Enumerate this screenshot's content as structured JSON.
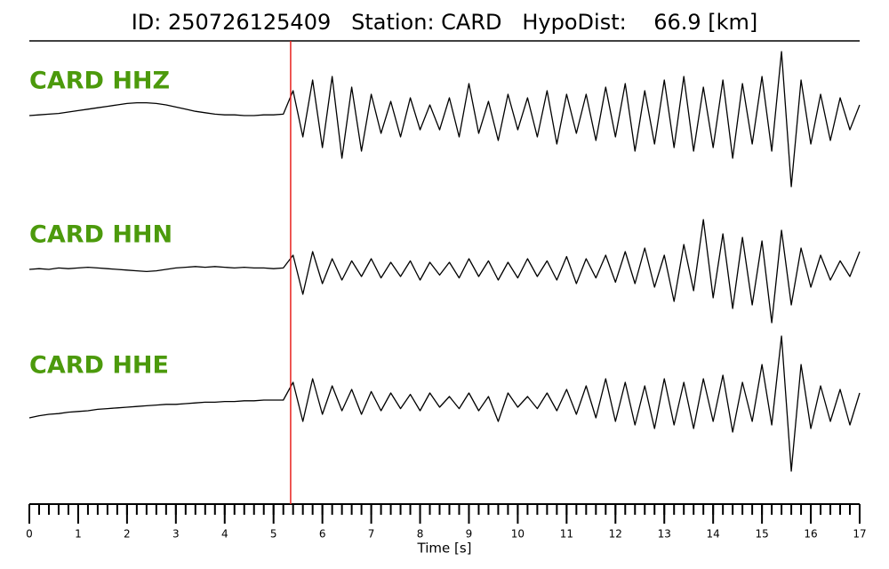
{
  "chart_data": {
    "type": "line",
    "title": "ID: 250726125409   Station: CARD   HypoDist:    66.9 [km]",
    "xlabel": "Time [s]",
    "xlim": [
      0,
      17
    ],
    "xticks": [
      0,
      1,
      2,
      3,
      4,
      5,
      6,
      7,
      8,
      9,
      10,
      11,
      12,
      13,
      14,
      15,
      16,
      17
    ],
    "minor_tick_step": 0.2,
    "ylim": [
      -1,
      1
    ],
    "pick_time": 5.35,
    "pick_color": "#e8211e",
    "label_color": "#4c9a0c",
    "x": [
      0,
      0.2,
      0.4,
      0.6,
      0.8,
      1,
      1.2,
      1.4,
      1.6,
      1.8,
      2,
      2.2,
      2.4,
      2.6,
      2.8,
      3,
      3.2,
      3.4,
      3.6,
      3.8,
      4,
      4.2,
      4.4,
      4.6,
      4.8,
      5,
      5.2,
      5.4,
      5.6,
      5.8,
      6,
      6.2,
      6.4,
      6.6,
      6.8,
      7,
      7.2,
      7.4,
      7.6,
      7.8,
      8,
      8.2,
      8.4,
      8.6,
      8.8,
      9,
      9.2,
      9.4,
      9.6,
      9.8,
      10,
      10.2,
      10.4,
      10.6,
      10.8,
      11,
      11.2,
      11.4,
      11.6,
      11.8,
      12,
      12.2,
      12.4,
      12.6,
      12.8,
      13,
      13.2,
      13.4,
      13.6,
      13.8,
      14,
      14.2,
      14.4,
      14.6,
      14.8,
      15,
      15.2,
      15.4,
      15.6,
      15.8,
      16,
      16.2,
      16.4,
      16.6,
      16.8,
      17
    ],
    "series": [
      {
        "name": "CARD HHZ",
        "color": "#000000",
        "values": [
          0,
          0.01,
          0.02,
          0.03,
          0.05,
          0.07,
          0.09,
          0.11,
          0.13,
          0.15,
          0.17,
          0.18,
          0.18,
          0.17,
          0.15,
          0.12,
          0.09,
          0.06,
          0.04,
          0.02,
          0.01,
          0.01,
          0,
          0,
          0.01,
          0.01,
          0.02,
          0.35,
          -0.3,
          0.5,
          -0.45,
          0.55,
          -0.6,
          0.4,
          -0.5,
          0.3,
          -0.25,
          0.2,
          -0.3,
          0.25,
          -0.2,
          0.15,
          -0.2,
          0.25,
          -0.3,
          0.45,
          -0.25,
          0.2,
          -0.35,
          0.3,
          -0.2,
          0.25,
          -0.3,
          0.35,
          -0.4,
          0.3,
          -0.25,
          0.3,
          -0.35,
          0.4,
          -0.3,
          0.45,
          -0.5,
          0.35,
          -0.4,
          0.5,
          -0.45,
          0.55,
          -0.5,
          0.4,
          -0.45,
          0.5,
          -0.6,
          0.45,
          -0.4,
          0.55,
          -0.5,
          0.9,
          -1.0,
          0.5,
          -0.4,
          0.3,
          -0.35,
          0.25,
          -0.2,
          0.15
        ]
      },
      {
        "name": "CARD HHN",
        "color": "#000000",
        "values": [
          0,
          0.01,
          0,
          0.02,
          0.01,
          0.02,
          0.03,
          0.02,
          0.01,
          0,
          -0.01,
          -0.02,
          -0.03,
          -0.02,
          0,
          0.02,
          0.03,
          0.04,
          0.03,
          0.04,
          0.03,
          0.02,
          0.03,
          0.02,
          0.02,
          0.01,
          0.02,
          0.2,
          -0.35,
          0.25,
          -0.2,
          0.15,
          -0.15,
          0.12,
          -0.1,
          0.15,
          -0.12,
          0.1,
          -0.1,
          0.12,
          -0.15,
          0.1,
          -0.08,
          0.1,
          -0.12,
          0.15,
          -0.1,
          0.12,
          -0.15,
          0.1,
          -0.12,
          0.15,
          -0.1,
          0.12,
          -0.15,
          0.18,
          -0.2,
          0.15,
          -0.12,
          0.2,
          -0.18,
          0.25,
          -0.2,
          0.3,
          -0.25,
          0.2,
          -0.45,
          0.35,
          -0.3,
          0.7,
          -0.4,
          0.5,
          -0.55,
          0.45,
          -0.5,
          0.4,
          -0.75,
          0.55,
          -0.5,
          0.3,
          -0.25,
          0.2,
          -0.15,
          0.12,
          -0.1,
          0.25
        ]
      },
      {
        "name": "CARD HHE",
        "color": "#000000",
        "values": [
          -0.25,
          -0.22,
          -0.2,
          -0.19,
          -0.17,
          -0.16,
          -0.15,
          -0.13,
          -0.12,
          -0.11,
          -0.1,
          -0.09,
          -0.08,
          -0.07,
          -0.06,
          -0.06,
          -0.05,
          -0.04,
          -0.03,
          -0.03,
          -0.02,
          -0.02,
          -0.01,
          -0.01,
          0,
          0,
          0,
          0.25,
          -0.3,
          0.3,
          -0.2,
          0.2,
          -0.15,
          0.15,
          -0.2,
          0.12,
          -0.15,
          0.1,
          -0.12,
          0.08,
          -0.15,
          0.1,
          -0.1,
          0.05,
          -0.12,
          0.1,
          -0.15,
          0.05,
          -0.3,
          0.1,
          -0.1,
          0.05,
          -0.12,
          0.1,
          -0.15,
          0.15,
          -0.2,
          0.2,
          -0.25,
          0.3,
          -0.3,
          0.25,
          -0.35,
          0.2,
          -0.4,
          0.3,
          -0.35,
          0.25,
          -0.4,
          0.3,
          -0.3,
          0.35,
          -0.45,
          0.25,
          -0.3,
          0.5,
          -0.35,
          0.9,
          -1.0,
          0.5,
          -0.4,
          0.2,
          -0.3,
          0.15,
          -0.35,
          0.1
        ]
      }
    ]
  }
}
